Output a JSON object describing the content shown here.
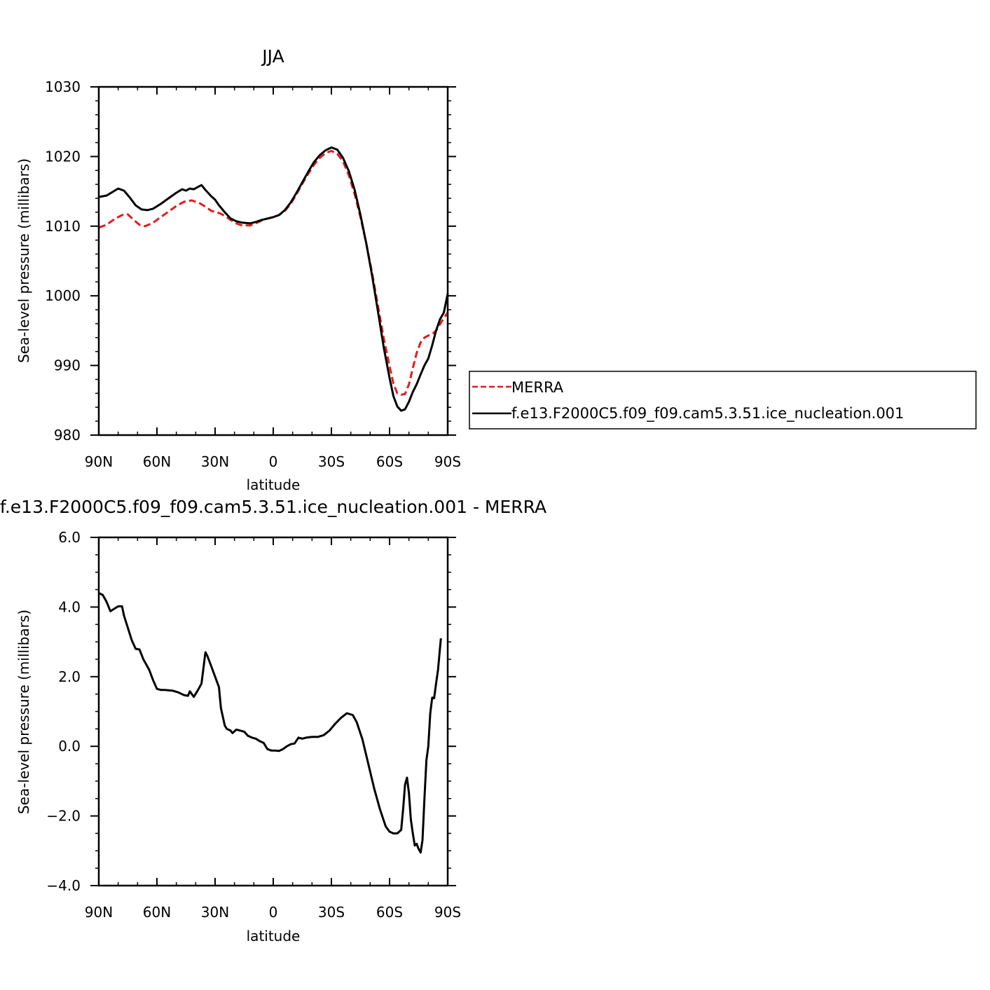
{
  "chart_data": [
    {
      "type": "line",
      "title": "JJA",
      "xlabel": "latitude",
      "ylabel": "Sea-level pressure (millibars)",
      "xlim": [
        90,
        -90
      ],
      "ylim": [
        980,
        1030
      ],
      "x_ticks": [
        90,
        60,
        30,
        0,
        -30,
        -60,
        -90
      ],
      "x_tick_labels": [
        "90N",
        "60N",
        "30N",
        "0",
        "30S",
        "60S",
        "90S"
      ],
      "y_ticks": [
        980,
        990,
        1000,
        1010,
        1020,
        1030
      ],
      "y_tick_labels": [
        "980",
        "990",
        "1000",
        "1010",
        "1020",
        "1030"
      ],
      "grid": false,
      "legend_position": "right",
      "series": [
        {
          "name": "MERRA",
          "color": "#e41a1c",
          "style": "dashed",
          "points": [
            [
              90,
              1009.8
            ],
            [
              86,
              1010.2
            ],
            [
              82,
              1011
            ],
            [
              78,
              1011.6
            ],
            [
              75,
              1011.7
            ],
            [
              72,
              1010.9
            ],
            [
              69,
              1010.2
            ],
            [
              66,
              1010
            ],
            [
              62,
              1010.5
            ],
            [
              58,
              1011.3
            ],
            [
              54,
              1012.1
            ],
            [
              50,
              1012.9
            ],
            [
              46,
              1013.5
            ],
            [
              42,
              1013.7
            ],
            [
              38,
              1013.3
            ],
            [
              35,
              1012.8
            ],
            [
              32,
              1012.2
            ],
            [
              28,
              1011.9
            ],
            [
              25,
              1011.5
            ],
            [
              22,
              1010.9
            ],
            [
              19,
              1010.4
            ],
            [
              16,
              1010.1
            ],
            [
              12,
              1010.1
            ],
            [
              9,
              1010.4
            ],
            [
              6,
              1010.8
            ],
            [
              3,
              1011.1
            ],
            [
              0,
              1011.3
            ],
            [
              -3,
              1011.6
            ],
            [
              -6,
              1012.2
            ],
            [
              -9,
              1013.2
            ],
            [
              -12,
              1014.6
            ],
            [
              -15,
              1016.1
            ],
            [
              -18,
              1017.5
            ],
            [
              -21,
              1018.8
            ],
            [
              -24,
              1019.8
            ],
            [
              -27,
              1020.5
            ],
            [
              -30,
              1020.8
            ],
            [
              -33,
              1020.4
            ],
            [
              -36,
              1019.3
            ],
            [
              -39,
              1017.3
            ],
            [
              -42,
              1014.6
            ],
            [
              -45,
              1011.3
            ],
            [
              -48,
              1007.5
            ],
            [
              -51,
              1003.3
            ],
            [
              -54,
              998.6
            ],
            [
              -57,
              993.9
            ],
            [
              -60,
              989.9
            ],
            [
              -62,
              987.4
            ],
            [
              -64,
              986
            ],
            [
              -66,
              985.8
            ],
            [
              -68,
              985.9
            ],
            [
              -70,
              987.3
            ],
            [
              -72,
              989.6
            ],
            [
              -74,
              991.8
            ],
            [
              -76,
              993.3
            ],
            [
              -78,
              994
            ],
            [
              -80,
              994.3
            ],
            [
              -82,
              994.5
            ],
            [
              -84,
              995
            ],
            [
              -86,
              995.9
            ],
            [
              -88,
              996.8
            ],
            [
              -90,
              997.6
            ]
          ]
        },
        {
          "name": "f.e13.F2000C5.f09_f09.cam5.3.51.ice_nucleation.001",
          "color": "#000000",
          "style": "solid",
          "points": [
            [
              90,
              1014.2
            ],
            [
              86,
              1014.4
            ],
            [
              83,
              1014.9
            ],
            [
              80,
              1015.4
            ],
            [
              77,
              1015.1
            ],
            [
              74,
              1014.1
            ],
            [
              71,
              1013
            ],
            [
              68,
              1012.4
            ],
            [
              65,
              1012.3
            ],
            [
              62,
              1012.5
            ],
            [
              58,
              1013.2
            ],
            [
              54,
              1014
            ],
            [
              50,
              1014.8
            ],
            [
              47,
              1015.3
            ],
            [
              45,
              1015.1
            ],
            [
              43,
              1015.4
            ],
            [
              41,
              1015.3
            ],
            [
              39,
              1015.6
            ],
            [
              37,
              1015.9
            ],
            [
              35,
              1015.2
            ],
            [
              32,
              1014.3
            ],
            [
              30,
              1013.8
            ],
            [
              28,
              1013
            ],
            [
              25,
              1012
            ],
            [
              22,
              1011.1
            ],
            [
              19,
              1010.7
            ],
            [
              16,
              1010.5
            ],
            [
              12,
              1010.4
            ],
            [
              9,
              1010.6
            ],
            [
              6,
              1010.9
            ],
            [
              3,
              1011.1
            ],
            [
              0,
              1011.3
            ],
            [
              -3,
              1011.6
            ],
            [
              -6,
              1012.3
            ],
            [
              -9,
              1013.4
            ],
            [
              -12,
              1014.8
            ],
            [
              -15,
              1016.3
            ],
            [
              -18,
              1017.8
            ],
            [
              -21,
              1019.2
            ],
            [
              -24,
              1020.2
            ],
            [
              -27,
              1020.9
            ],
            [
              -30,
              1021.3
            ],
            [
              -33,
              1021
            ],
            [
              -36,
              1019.8
            ],
            [
              -39,
              1017.9
            ],
            [
              -42,
              1015.2
            ],
            [
              -45,
              1011.6
            ],
            [
              -48,
              1007.5
            ],
            [
              -51,
              1002.9
            ],
            [
              -54,
              997.8
            ],
            [
              -57,
              992.6
            ],
            [
              -60,
              988.2
            ],
            [
              -62,
              985.6
            ],
            [
              -64,
              984.1
            ],
            [
              -66,
              983.5
            ],
            [
              -68,
              983.7
            ],
            [
              -70,
              984.8
            ],
            [
              -72,
              986.2
            ],
            [
              -74,
              987.3
            ],
            [
              -76,
              988.7
            ],
            [
              -78,
              990
            ],
            [
              -80,
              991
            ],
            [
              -82,
              992.9
            ],
            [
              -84,
              995
            ],
            [
              -86,
              996.6
            ],
            [
              -88,
              997.6
            ],
            [
              -90,
              1000.3
            ]
          ]
        }
      ]
    },
    {
      "type": "line",
      "title": "f.e13.F2000C5.f09_f09.cam5.3.51.ice_nucleation.001 - MERRA",
      "xlabel": "latitude",
      "ylabel": "Sea-level pressure (millibars)",
      "xlim": [
        90,
        -90
      ],
      "ylim": [
        -4,
        6
      ],
      "x_ticks": [
        90,
        60,
        30,
        0,
        -30,
        -60,
        -90
      ],
      "x_tick_labels": [
        "90N",
        "60N",
        "30N",
        "0",
        "30S",
        "60S",
        "90S"
      ],
      "y_ticks": [
        -4,
        -2,
        0,
        2,
        4,
        6
      ],
      "y_tick_labels": [
        "−4.0",
        "−2.0",
        "0.0",
        "2.0",
        "4.0",
        "6.0"
      ],
      "grid": false,
      "series": [
        {
          "color": "#000000",
          "style": "solid",
          "points": [
            [
              90,
              4.4
            ],
            [
              88,
              4.35
            ],
            [
              86,
              4.15
            ],
            [
              84,
              3.88
            ],
            [
              82,
              3.95
            ],
            [
              80,
              4.02
            ],
            [
              78,
              4.02
            ],
            [
              77,
              3.75
            ],
            [
              75,
              3.4
            ],
            [
              73,
              3.05
            ],
            [
              71,
              2.8
            ],
            [
              69,
              2.78
            ],
            [
              67,
              2.5
            ],
            [
              64,
              2.2
            ],
            [
              62,
              1.9
            ],
            [
              60,
              1.65
            ],
            [
              58,
              1.62
            ],
            [
              56,
              1.62
            ],
            [
              52,
              1.6
            ],
            [
              49,
              1.55
            ],
            [
              46,
              1.47
            ],
            [
              44,
              1.45
            ],
            [
              43,
              1.58
            ],
            [
              41,
              1.42
            ],
            [
              39,
              1.6
            ],
            [
              37,
              1.8
            ],
            [
              35,
              2.7
            ],
            [
              34,
              2.6
            ],
            [
              32,
              2.3
            ],
            [
              30,
              2
            ],
            [
              28,
              1.7
            ],
            [
              27,
              1.1
            ],
            [
              25,
              0.6
            ],
            [
              24,
              0.5
            ],
            [
              22,
              0.45
            ],
            [
              21,
              0.38
            ],
            [
              19,
              0.48
            ],
            [
              17,
              0.45
            ],
            [
              15,
              0.42
            ],
            [
              13,
              0.3
            ],
            [
              11,
              0.25
            ],
            [
              9,
              0.22
            ],
            [
              7,
              0.15
            ],
            [
              5,
              0.1
            ],
            [
              3,
              -0.08
            ],
            [
              1,
              -0.12
            ],
            [
              -1,
              -0.12
            ],
            [
              -3,
              -0.13
            ],
            [
              -5,
              -0.08
            ],
            [
              -7,
              0
            ],
            [
              -9,
              0.06
            ],
            [
              -11,
              0.08
            ],
            [
              -13,
              0.25
            ],
            [
              -15,
              0.22
            ],
            [
              -17,
              0.25
            ],
            [
              -20,
              0.27
            ],
            [
              -23,
              0.27
            ],
            [
              -26,
              0.32
            ],
            [
              -29,
              0.45
            ],
            [
              -32,
              0.65
            ],
            [
              -35,
              0.82
            ],
            [
              -38,
              0.95
            ],
            [
              -41,
              0.9
            ],
            [
              -43,
              0.7
            ],
            [
              -46,
              0.2
            ],
            [
              -49,
              -0.5
            ],
            [
              -52,
              -1.2
            ],
            [
              -55,
              -1.8
            ],
            [
              -58,
              -2.3
            ],
            [
              -60,
              -2.45
            ],
            [
              -62,
              -2.5
            ],
            [
              -64,
              -2.5
            ],
            [
              -65,
              -2.45
            ],
            [
              -66,
              -2.4
            ],
            [
              -67,
              -1.8
            ],
            [
              -68,
              -1.1
            ],
            [
              -69,
              -0.9
            ],
            [
              -70,
              -1.35
            ],
            [
              -71,
              -2.1
            ],
            [
              -72,
              -2.5
            ],
            [
              -73,
              -2.85
            ],
            [
              -74,
              -2.8
            ],
            [
              -75,
              -2.95
            ],
            [
              -76,
              -3.05
            ],
            [
              -77,
              -2.7
            ],
            [
              -78,
              -1.5
            ],
            [
              -79,
              -0.4
            ],
            [
              -80,
              0
            ],
            [
              -81,
              0.95
            ],
            [
              -82,
              1.4
            ],
            [
              -83,
              1.38
            ],
            [
              -84,
              1.8
            ],
            [
              -85,
              2.2
            ],
            [
              -86,
              2.8
            ],
            [
              -86.5,
              3.1
            ]
          ]
        }
      ]
    }
  ]
}
